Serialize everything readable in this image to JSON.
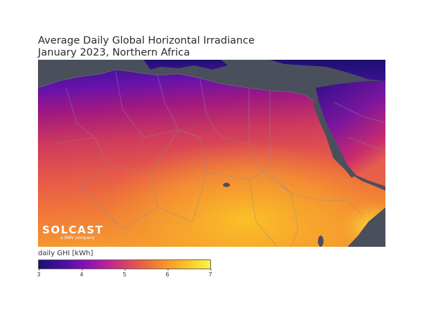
{
  "title": {
    "line1": "Average Daily Global Horizontal Irradiance",
    "line2": "January 2023, Northern Africa"
  },
  "logo": {
    "text": "SOLCAST",
    "sub": "a DNV company"
  },
  "colorbar": {
    "label": "daily GHI [kWh]",
    "min": 3,
    "max": 7,
    "ticks": [
      "3",
      "4",
      "5",
      "6",
      "7"
    ],
    "tick_values": [
      3,
      4,
      5,
      6,
      7
    ],
    "colors": [
      "#1a1070",
      "#4a0fa0",
      "#8d12b4",
      "#c22a8a",
      "#e25652",
      "#f58a2c",
      "#fbc224",
      "#fbf44c"
    ]
  },
  "colors": {
    "sea": "#4a4f5c",
    "border": "#8a8a9a"
  }
}
